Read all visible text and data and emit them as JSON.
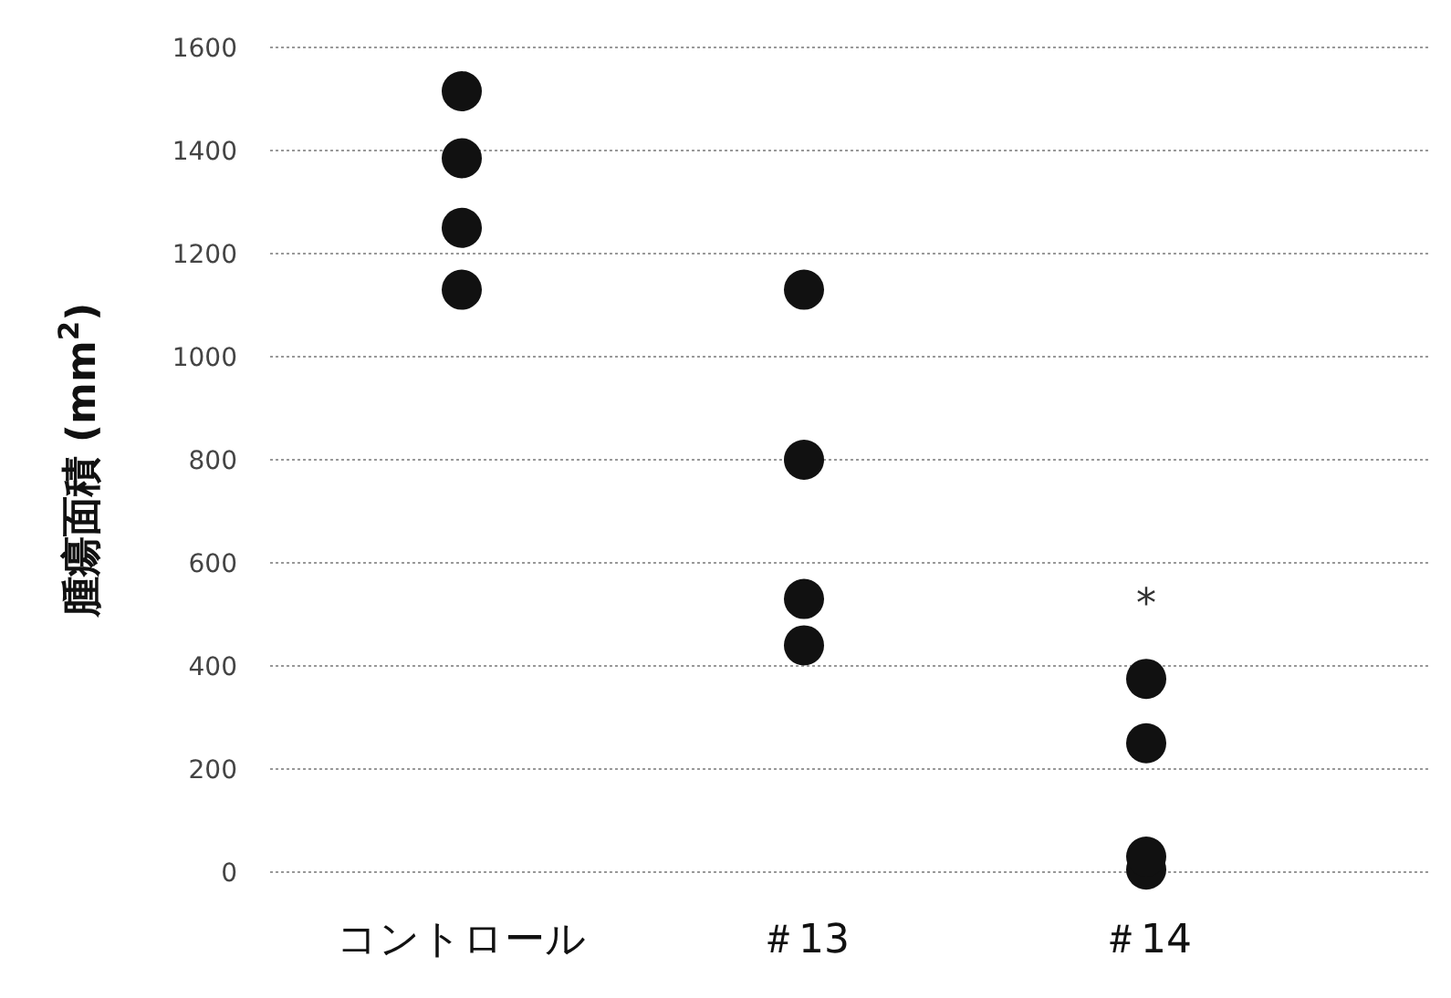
{
  "chart_data": {
    "type": "scatter",
    "ylabel": "腫瘍面積 (mm$^{2}$)",
    "categories": [
      "コントロール",
      "＃13",
      "＃14"
    ],
    "series": [
      {
        "x": [
          "コントロール",
          "コントロール",
          "コントロール",
          "コントロール",
          "＃13",
          "＃13",
          "＃13",
          "＃13",
          "＃14",
          "＃14",
          "＃14",
          "＃14"
        ],
        "values": [
          1515,
          1385,
          1250,
          1130,
          1130,
          800,
          530,
          440,
          375,
          250,
          30,
          5
        ],
        "color": "#111111"
      }
    ],
    "ylim": [
      0,
      1600
    ],
    "yticks": [
      0,
      200,
      400,
      600,
      800,
      1000,
      1200,
      1400,
      1600
    ],
    "grid": "y",
    "marker": "circle",
    "annotations": [
      "*"
    ]
  }
}
